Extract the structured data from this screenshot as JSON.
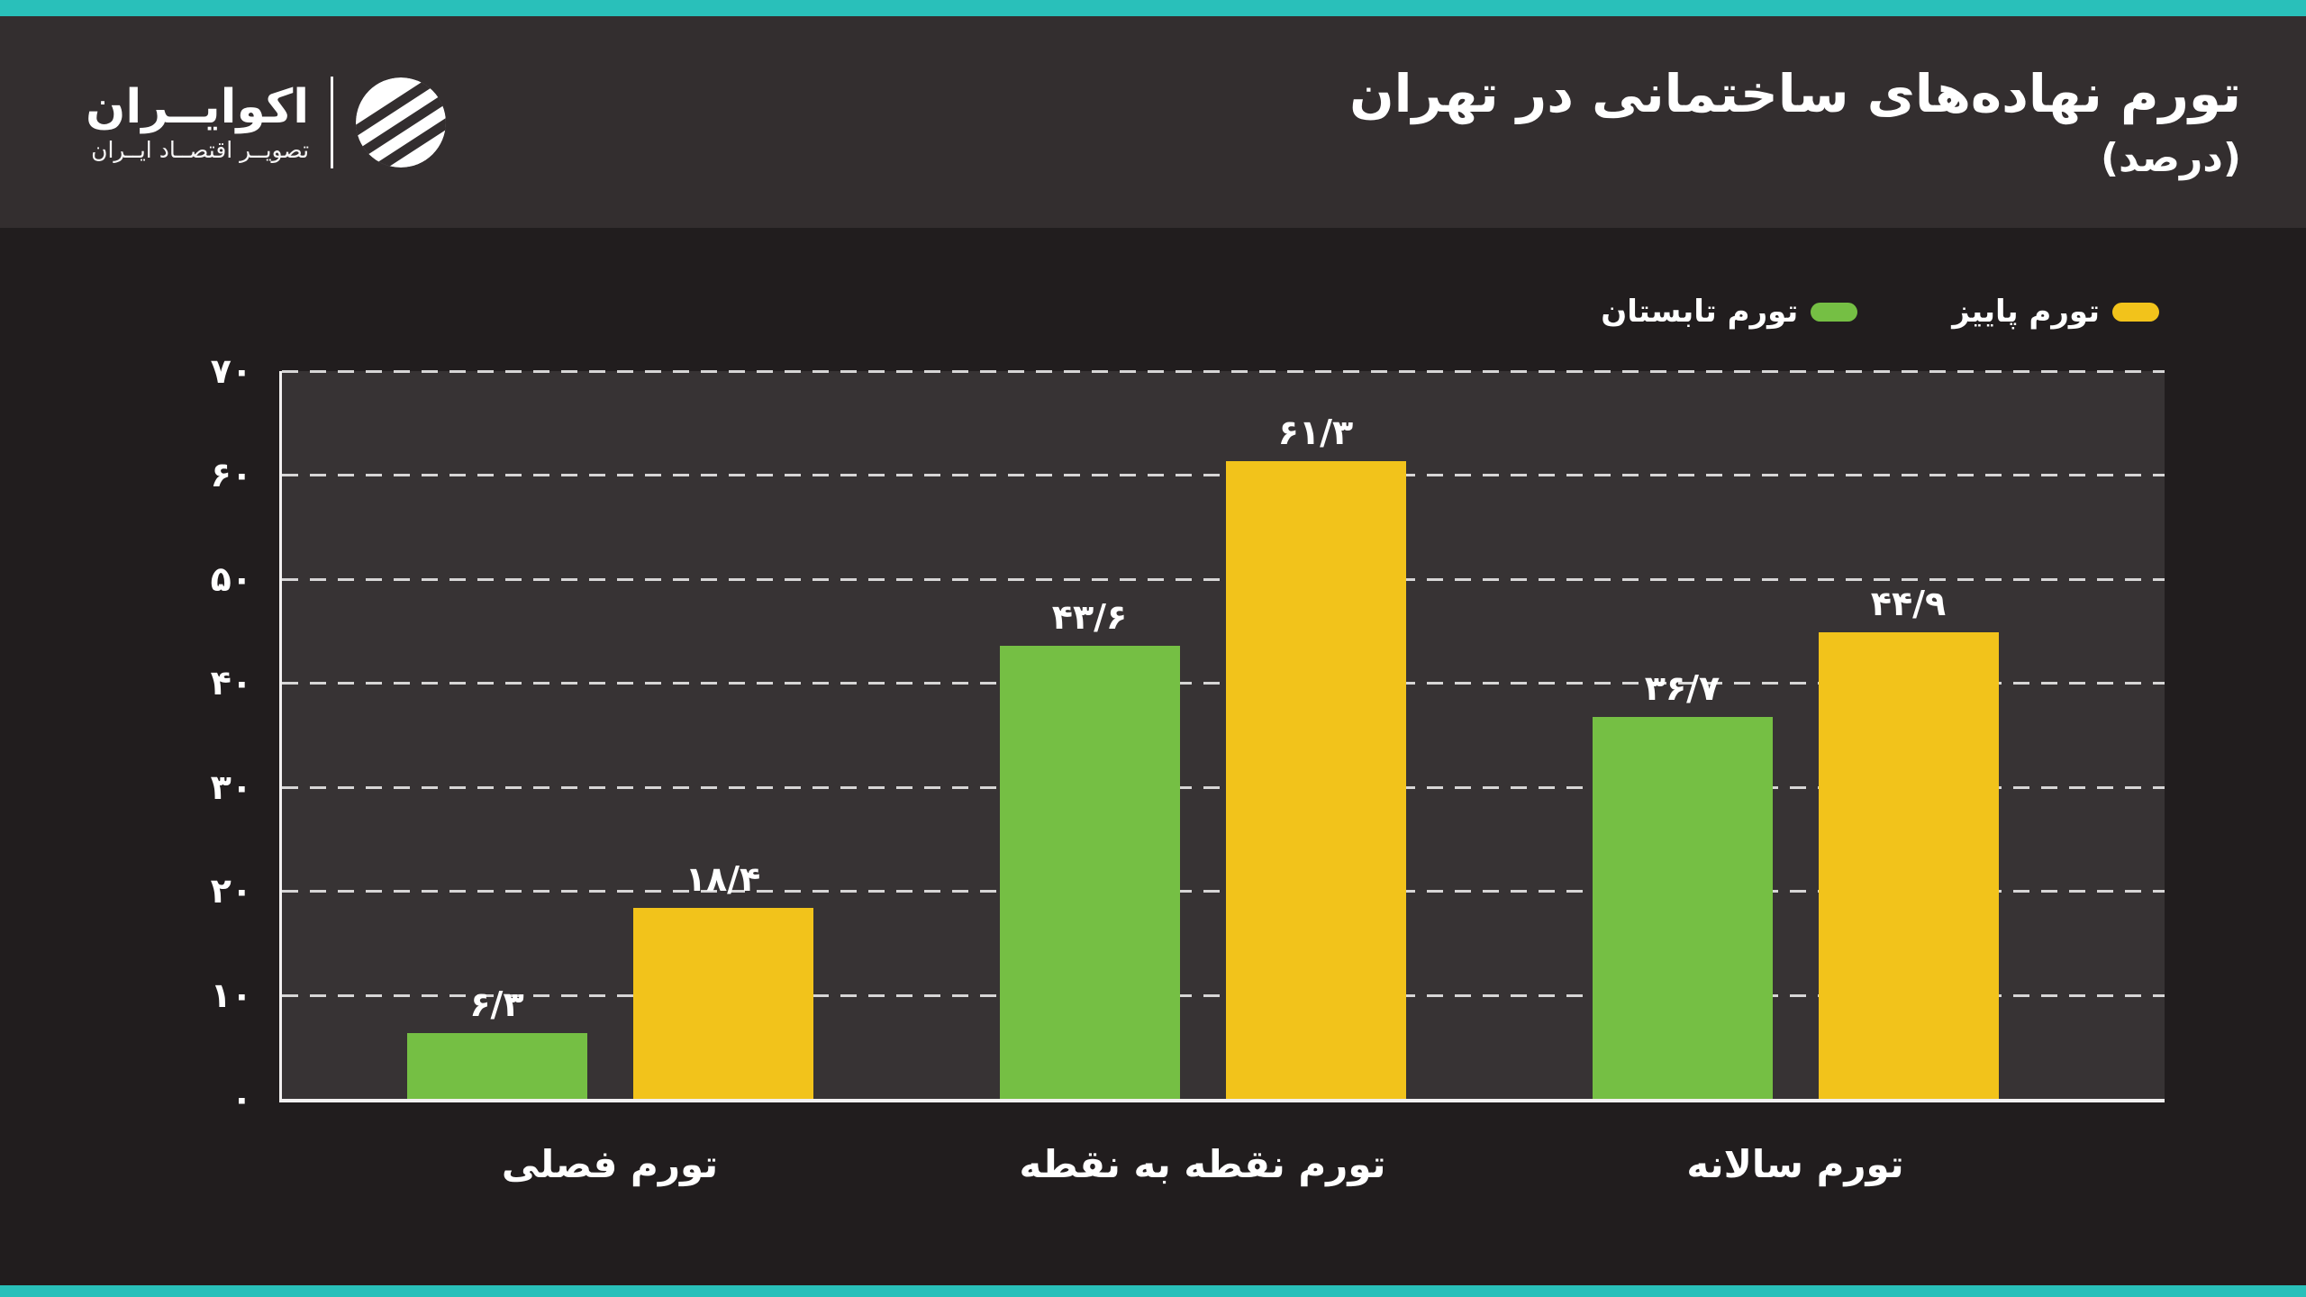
{
  "colors": {
    "accent_teal": "#29c0ba",
    "page_bg": "#211d1e",
    "header_bg": "#332e2f",
    "plot_bg": "#373334",
    "axis_line": "#f2f0f0",
    "text": "#ffffff",
    "series_fall_yellow": "#f2c31b",
    "series_summer_green": "#75bf44"
  },
  "header": {
    "title": "تورم نهاده‌های ساختمانی در تهران",
    "subtitle": "(درصد)",
    "logo": {
      "name": "اکوایــران",
      "tagline": "تصویــر اقتصــاد ایــران",
      "icon": "ecoiran-striped-sphere"
    }
  },
  "chart_data": {
    "type": "bar",
    "title": "تورم نهاده‌های ساختمانی در تهران",
    "unit": "درصد",
    "rtl": true,
    "categories": [
      "تورم فصلی",
      "تورم نقطه به نقطه",
      "تورم سالانه"
    ],
    "series": [
      {
        "id": "fall",
        "name": "تورم پاییز",
        "color": "#f2c31b",
        "values": [
          18.4,
          61.3,
          44.9
        ],
        "value_labels": [
          "۱۸/۴",
          "۶۱/۳",
          "۴۴/۹"
        ]
      },
      {
        "id": "summer",
        "name": "تورم تابستان",
        "color": "#75bf44",
        "values": [
          6.3,
          43.6,
          36.7
        ],
        "value_labels": [
          "۶/۳",
          "۴۳/۶",
          "۳۶/۷"
        ]
      }
    ],
    "y_axis": {
      "min": 0,
      "max": 70,
      "tick_step": 10,
      "ticks": [
        {
          "value": 0,
          "label": "۰"
        },
        {
          "value": 10,
          "label": "۱۰"
        },
        {
          "value": 20,
          "label": "۲۰"
        },
        {
          "value": 30,
          "label": "۳۰"
        },
        {
          "value": 40,
          "label": "۴۰"
        },
        {
          "value": 50,
          "label": "۵۰"
        },
        {
          "value": 60,
          "label": "۶۰"
        },
        {
          "value": 70,
          "label": "۷۰"
        }
      ]
    },
    "grid": "horizontal-dashed",
    "legend_position": "top-right"
  }
}
